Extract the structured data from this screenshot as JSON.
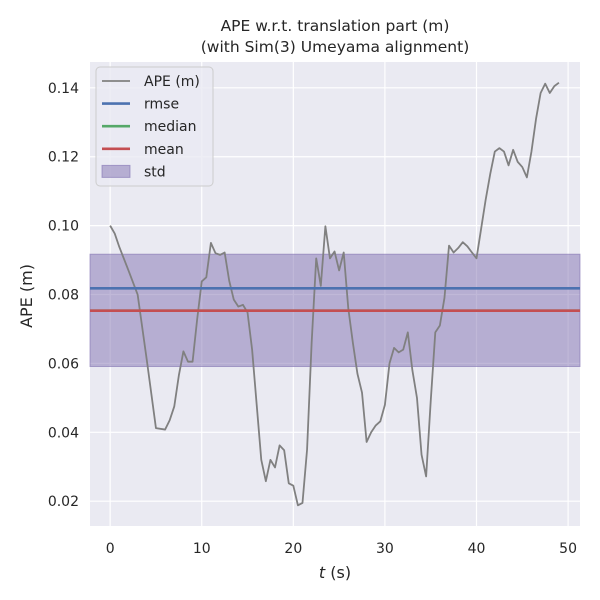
{
  "chart_data": {
    "type": "line",
    "title_line1": "APE w.r.t. translation part (m)",
    "title_line2": "(with Sim(3) Umeyama alignment)",
    "xlabel_italic": "t",
    "xlabel_rest": " (s)",
    "ylabel": "APE (m)",
    "xlim": [
      -2.2,
      51.3
    ],
    "ylim": [
      0.0128,
      0.1475
    ],
    "x_ticks": [
      0,
      10,
      20,
      30,
      40,
      50
    ],
    "y_ticks": [
      0.02,
      0.04,
      0.06,
      0.08,
      0.1,
      0.12,
      0.14
    ],
    "y_tick_labels": [
      "0.02",
      "0.04",
      "0.06",
      "0.08",
      "0.10",
      "0.12",
      "0.14"
    ],
    "grid": true,
    "background_color": "#eaeaf2",
    "legend_position": "top-left",
    "legend": [
      {
        "label": "APE (m)",
        "kind": "line",
        "color": "#808080"
      },
      {
        "label": "rmse",
        "kind": "line",
        "color": "#4c72b0"
      },
      {
        "label": "median",
        "kind": "line",
        "color": "#55a868"
      },
      {
        "label": "mean",
        "kind": "line",
        "color": "#c44e52"
      },
      {
        "label": "std",
        "kind": "patch",
        "color": "#8172b2"
      }
    ],
    "stats": {
      "rmse": 0.0818,
      "median": 0.0753,
      "mean": 0.0753,
      "std_low": 0.0591,
      "std_high": 0.0917
    },
    "series": [
      {
        "name": "APE (m)",
        "color": "#808080",
        "x": [
          0,
          0.5,
          1,
          2,
          3,
          4,
          5,
          6,
          6.5,
          7,
          7.5,
          8,
          8.5,
          9,
          9.5,
          10,
          10.5,
          11,
          11.5,
          12,
          12.5,
          13,
          13.5,
          14,
          14.5,
          15,
          15.5,
          16,
          16.5,
          17,
          17.5,
          18,
          18.5,
          19,
          19.5,
          20,
          20.5,
          21,
          21.5,
          22,
          22.5,
          23,
          23.5,
          24,
          24.5,
          25,
          25.5,
          26,
          26.5,
          27,
          27.5,
          28,
          28.5,
          29,
          29.5,
          30,
          30.5,
          31,
          31.5,
          32,
          32.5,
          33,
          33.5,
          34,
          34.5,
          35,
          35.5,
          36,
          36.5,
          37,
          37.5,
          38,
          38.5,
          39,
          39.5,
          40,
          40.5,
          41,
          41.5,
          42,
          42.5,
          43,
          43.5,
          44,
          44.5,
          45,
          45.5,
          46,
          46.5,
          47,
          47.5,
          48,
          48.5,
          49
        ],
        "values": [
          0.1,
          0.0977,
          0.0938,
          0.087,
          0.08,
          0.061,
          0.0412,
          0.0408,
          0.0435,
          0.0475,
          0.0565,
          0.0635,
          0.0605,
          0.0605,
          0.0728,
          0.0838,
          0.085,
          0.095,
          0.092,
          0.0915,
          0.0922,
          0.084,
          0.0785,
          0.0765,
          0.077,
          0.0748,
          0.064,
          0.048,
          0.032,
          0.0258,
          0.032,
          0.0298,
          0.0362,
          0.0348,
          0.0252,
          0.0245,
          0.0188,
          0.0195,
          0.035,
          0.066,
          0.0905,
          0.0825,
          0.0998,
          0.0905,
          0.0925,
          0.087,
          0.0922,
          0.076,
          0.066,
          0.057,
          0.0515,
          0.0372,
          0.04,
          0.042,
          0.0432,
          0.048,
          0.06,
          0.0645,
          0.0632,
          0.064,
          0.069,
          0.058,
          0.05,
          0.0335,
          0.0272,
          0.049,
          0.069,
          0.071,
          0.079,
          0.0942,
          0.0922,
          0.0935,
          0.0952,
          0.094,
          0.0922,
          0.0905,
          0.099,
          0.1075,
          0.115,
          0.1215,
          0.1225,
          0.1215,
          0.1175,
          0.122,
          0.1185,
          0.117,
          0.114,
          0.1215,
          0.131,
          0.1385,
          0.1412,
          0.1385,
          0.1405,
          0.1415
        ]
      }
    ]
  }
}
